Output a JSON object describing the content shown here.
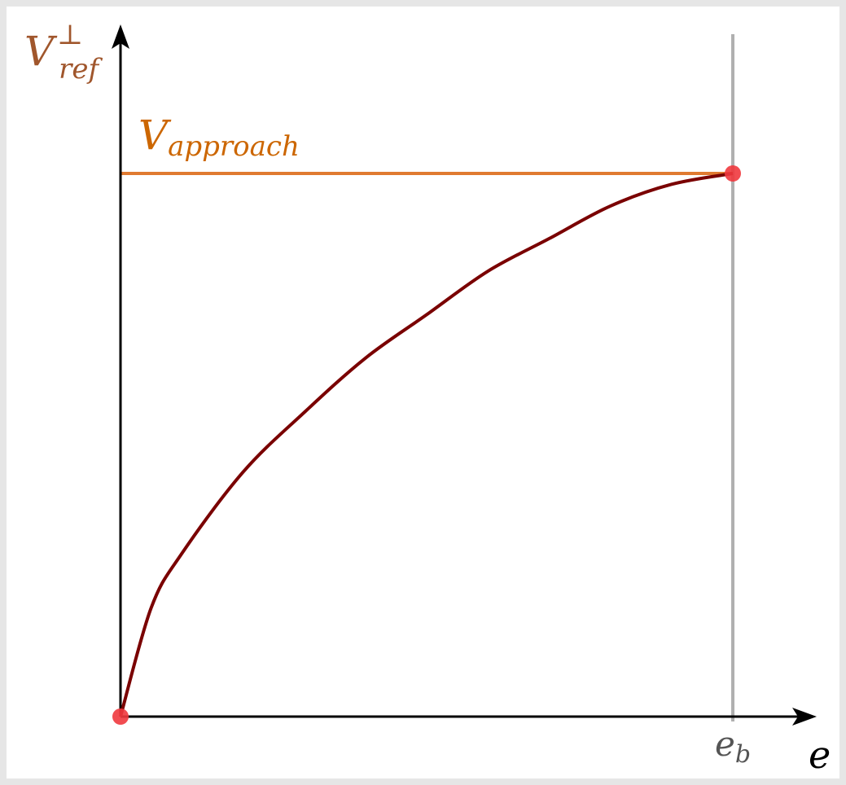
{
  "chart_data": {
    "type": "line",
    "title": "",
    "xlabel": "e",
    "ylabel": {
      "base": "V",
      "superscript": "⊥",
      "subscript": "ref"
    },
    "xlim": [
      0,
      1.0
    ],
    "ylim": [
      0,
      1.0
    ],
    "grid": false,
    "curve": {
      "description_free": true,
      "points_x": [
        0,
        0.05,
        0.1,
        0.2,
        0.3,
        0.4,
        0.5,
        0.6,
        0.7,
        0.8,
        0.9,
        1.0
      ],
      "points_y": [
        0,
        0.2,
        0.3,
        0.45,
        0.56,
        0.66,
        0.74,
        0.82,
        0.88,
        0.94,
        0.98,
        1.0
      ]
    },
    "reference_line": {
      "base": "V",
      "subscript": "approach",
      "y": 1.0
    },
    "vertical_marker": {
      "base": "e",
      "subscript": "b",
      "x": 1.0
    },
    "markers": [
      {
        "x": 0,
        "y": 0
      },
      {
        "x": 1.0,
        "y": 1.0
      }
    ],
    "colors": {
      "axis": "#000000",
      "curve": "#7a0000",
      "reference_line": "#e07a30",
      "reference_label": "#cc6600",
      "ylabel": "#a0562c",
      "vertical_marker": "#b0b0b0",
      "vertical_label": "#555555",
      "markers": "#f0383e"
    }
  }
}
